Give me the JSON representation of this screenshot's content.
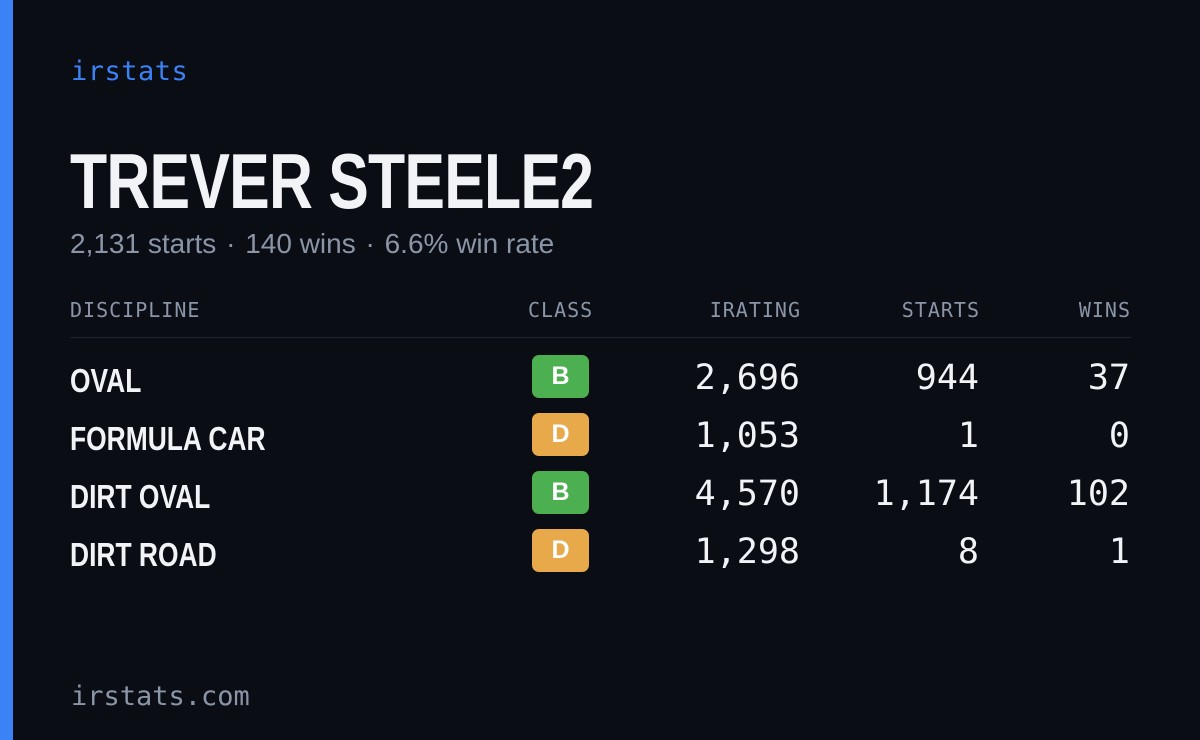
{
  "brand": "irstats",
  "driver": {
    "name": "TREVER STEELE2",
    "starts_text": "2,131 starts",
    "wins_text": "140 wins",
    "win_rate_text": "6.6% win rate",
    "separator": "·"
  },
  "table": {
    "headers": {
      "discipline": "DISCIPLINE",
      "class": "CLASS",
      "irating": "IRATING",
      "starts": "STARTS",
      "wins": "WINS"
    },
    "rows": [
      {
        "discipline": "OVAL",
        "class": "B",
        "class_color": "#4caf50",
        "irating": "2,696",
        "starts": "944",
        "wins": "37"
      },
      {
        "discipline": "FORMULA CAR",
        "class": "D",
        "class_color": "#e8a94a",
        "irating": "1,053",
        "starts": "1",
        "wins": "0"
      },
      {
        "discipline": "DIRT OVAL",
        "class": "B",
        "class_color": "#4caf50",
        "irating": "4,570",
        "starts": "1,174",
        "wins": "102"
      },
      {
        "discipline": "DIRT ROAD",
        "class": "D",
        "class_color": "#e8a94a",
        "irating": "1,298",
        "starts": "8",
        "wins": "1"
      }
    ]
  },
  "footer": "irstats.com",
  "colors": {
    "background": "#0a0d14",
    "accent": "#3b82f6",
    "class_b": "#4caf50",
    "class_d": "#e8a94a"
  }
}
